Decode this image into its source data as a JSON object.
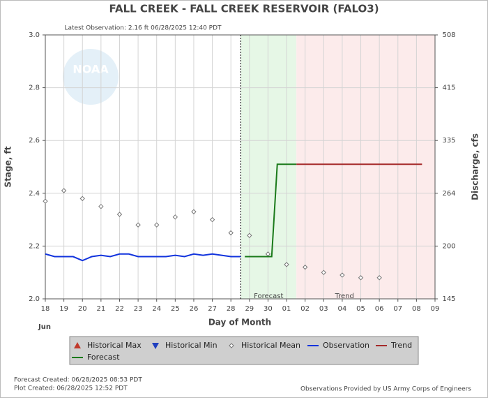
{
  "chart_data": {
    "type": "line",
    "title": "FALL CREEK - FALL CREEK RESERVOIR  (FALO3)",
    "subtitle": "Latest Observation: 2.16 ft 06/28/2025 12:40 PDT",
    "watermark": "NOAA",
    "ylabel": "Stage, ft",
    "y2label": "Discharge, cfs",
    "xlabel": "Day of Month",
    "month_label": "Jun",
    "xlim": [
      0,
      21
    ],
    "xticks": [
      {
        "value": 0,
        "label": "18"
      },
      {
        "value": 1,
        "label": "19"
      },
      {
        "value": 2,
        "label": "20"
      },
      {
        "value": 3,
        "label": "21"
      },
      {
        "value": 4,
        "label": "22"
      },
      {
        "value": 5,
        "label": "23"
      },
      {
        "value": 6,
        "label": "24"
      },
      {
        "value": 7,
        "label": "25"
      },
      {
        "value": 8,
        "label": "26"
      },
      {
        "value": 9,
        "label": "27"
      },
      {
        "value": 10,
        "label": "28"
      },
      {
        "value": 11,
        "label": "29"
      },
      {
        "value": 12,
        "label": "30"
      },
      {
        "value": 13,
        "label": "01"
      },
      {
        "value": 14,
        "label": "02"
      },
      {
        "value": 15,
        "label": "03"
      },
      {
        "value": 16,
        "label": "04"
      },
      {
        "value": 17,
        "label": "05"
      },
      {
        "value": 18,
        "label": "06"
      },
      {
        "value": 19,
        "label": "07"
      },
      {
        "value": 20,
        "label": "08"
      },
      {
        "value": 21,
        "label": "09"
      }
    ],
    "ylim": [
      2.0,
      3.0
    ],
    "yticks": [
      {
        "value": 2.0,
        "label": "2.0"
      },
      2.2,
      2.4,
      2.6,
      2.8,
      {
        "value": 3.0,
        "label": "3.0"
      }
    ],
    "y2ticks": [
      145,
      200,
      264,
      335,
      415,
      508
    ],
    "grid": true,
    "annotations": [
      "Forecast",
      "Trend"
    ],
    "series": [
      {
        "name": "Historical Max",
        "color": "#c0392b",
        "marker": "triangle-up",
        "x": [],
        "values": []
      },
      {
        "name": "Historical Min",
        "color": "#1f3fbf",
        "marker": "triangle-down",
        "x": [],
        "values": []
      },
      {
        "name": "Historical Mean",
        "color": "#777777",
        "marker": "diamond",
        "x": [
          0,
          1,
          2,
          3,
          4,
          5,
          6,
          7,
          8,
          9,
          10,
          11,
          12,
          13,
          14,
          15,
          16,
          17,
          18
        ],
        "values": [
          2.37,
          2.41,
          2.38,
          2.35,
          2.32,
          2.28,
          2.28,
          2.31,
          2.33,
          2.3,
          2.25,
          2.24,
          2.17,
          2.13,
          2.12,
          2.1,
          2.09,
          2.08,
          2.08
        ]
      },
      {
        "name": "Observation",
        "color": "#1133dd",
        "marker": "line",
        "x": [
          0,
          0.5,
          1,
          1.5,
          2,
          2.5,
          3,
          3.5,
          4,
          4.5,
          5,
          5.5,
          6,
          6.5,
          7,
          7.5,
          8,
          8.5,
          9,
          9.5,
          10,
          10.53
        ],
        "values": [
          2.17,
          2.16,
          2.16,
          2.16,
          2.145,
          2.16,
          2.165,
          2.16,
          2.17,
          2.17,
          2.16,
          2.16,
          2.16,
          2.16,
          2.165,
          2.16,
          2.17,
          2.165,
          2.17,
          2.165,
          2.16,
          2.16
        ]
      },
      {
        "name": "Trend",
        "color": "#a52a2a",
        "marker": "line",
        "x": [
          13.53,
          20.3
        ],
        "values": [
          2.51,
          2.51
        ]
      },
      {
        "name": "Forecast",
        "color": "#1a7a1a",
        "marker": "line",
        "x": [
          10.75,
          12.2,
          12.5,
          13.53
        ],
        "values": [
          2.16,
          2.16,
          2.51,
          2.51
        ]
      }
    ],
    "footer": {
      "forecast_created": "Forecast Created: 06/28/2025 08:53 PDT",
      "plot_created": "Plot Created: 06/28/2025 12:52 PDT",
      "credit": "Observations Provided by US Army Corps of Engineers"
    }
  }
}
